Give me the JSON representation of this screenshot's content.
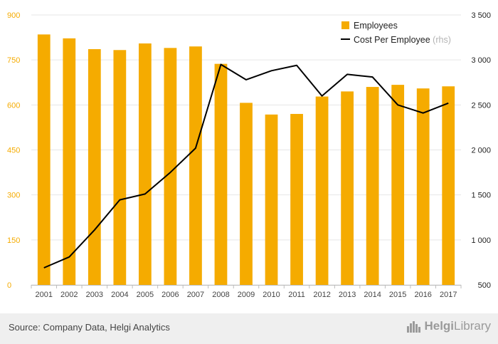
{
  "chart_data": {
    "type": "bar+line",
    "categories": [
      "2001",
      "2002",
      "2003",
      "2004",
      "2005",
      "2006",
      "2007",
      "2008",
      "2009",
      "2010",
      "2011",
      "2012",
      "2013",
      "2014",
      "2015",
      "2016",
      "2017"
    ],
    "series": [
      {
        "name": "Employees",
        "type": "bar",
        "axis": "left",
        "color": "#F5AB00",
        "values": [
          835,
          822,
          786,
          783,
          805,
          790,
          795,
          737,
          607,
          568,
          570,
          628,
          645,
          660,
          667,
          655,
          662
        ]
      },
      {
        "name": "Cost Per Employee",
        "name_suffix": "(rhs)",
        "type": "line",
        "axis": "right",
        "color": "#000000",
        "values": [
          690,
          810,
          1110,
          1445,
          1510,
          1750,
          2020,
          2950,
          2780,
          2880,
          2940,
          2600,
          2840,
          2810,
          2500,
          2410,
          2520
        ]
      }
    ],
    "y_left": {
      "min": 0,
      "max": 900,
      "ticks": [
        "0",
        "150",
        "300",
        "450",
        "600",
        "750",
        "900"
      ]
    },
    "y_right": {
      "min": 500,
      "max": 3500,
      "ticks": [
        "500",
        "1 000",
        "1 500",
        "2 000",
        "2 500",
        "3 000",
        "3 500"
      ]
    },
    "grid": true,
    "legend_position": "top-right"
  },
  "footer": {
    "source": "Source: Company Data, Helgi Analytics",
    "logo_bold": "Helgi",
    "logo_light": "Library"
  }
}
